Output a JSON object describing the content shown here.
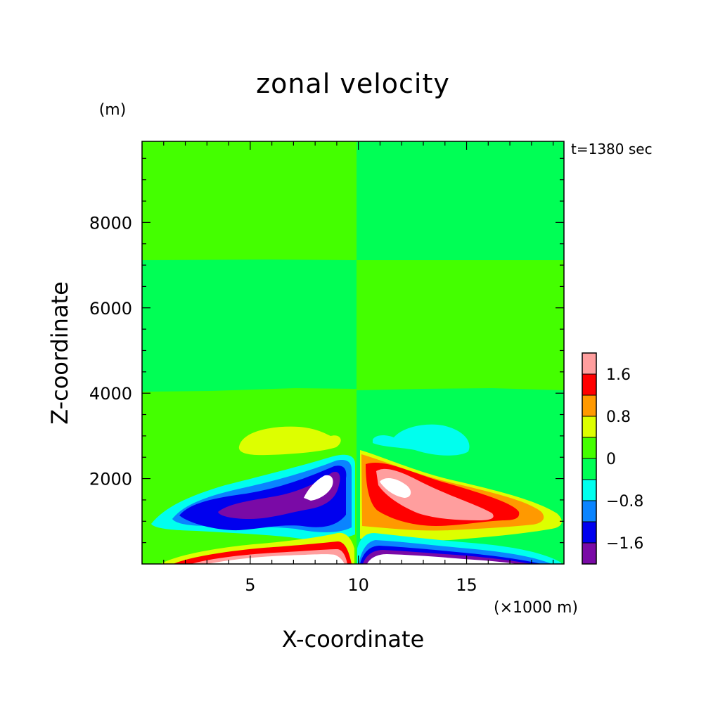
{
  "chart_data": {
    "type": "heatmap",
    "title": "zonal velocity",
    "xlabel": "X-coordinate",
    "ylabel": "Z-coordinate",
    "x_unit": "(×1000 m)",
    "y_unit": "(m)",
    "time_label": "t=1380 sec",
    "xlim": [
      0,
      19.5
    ],
    "ylim": [
      0,
      9900
    ],
    "x_ticks": [
      5,
      10,
      15
    ],
    "x_tick_labels": [
      "5",
      "10",
      "15"
    ],
    "y_ticks": [
      2000,
      4000,
      6000,
      8000
    ],
    "y_tick_labels": [
      "2000",
      "4000",
      "6000",
      "8000"
    ],
    "colorbar": {
      "levels": [
        -2.0,
        -1.6,
        -1.2,
        -0.8,
        -0.4,
        0,
        0.4,
        0.8,
        1.2,
        1.6,
        2.0
      ],
      "tick_labels": [
        "1.6",
        "0.8",
        "0",
        "-0.8",
        "-1.6"
      ],
      "tick_values": [
        1.6,
        0.8,
        0,
        -0.8,
        -1.6
      ],
      "colors": [
        "#7a0aa6",
        "#0000ee",
        "#0a84ff",
        "#00ffee",
        "#00ff55",
        "#44ff00",
        "#ddff00",
        "#ff9900",
        "#ff0000",
        "#ff9e9e"
      ]
    },
    "colors": {
      "white": "#ffffff",
      "purple": "#7a0aa6",
      "blue": "#0000ee",
      "mid_blue": "#0a84ff",
      "cyan": "#00ffee",
      "green": "#00ff55",
      "yellow_green": "#44ff00",
      "yellow": "#ddff00",
      "orange": "#ff9900",
      "red": "#ff0000",
      "pink": "#ff9e9e"
    }
  }
}
